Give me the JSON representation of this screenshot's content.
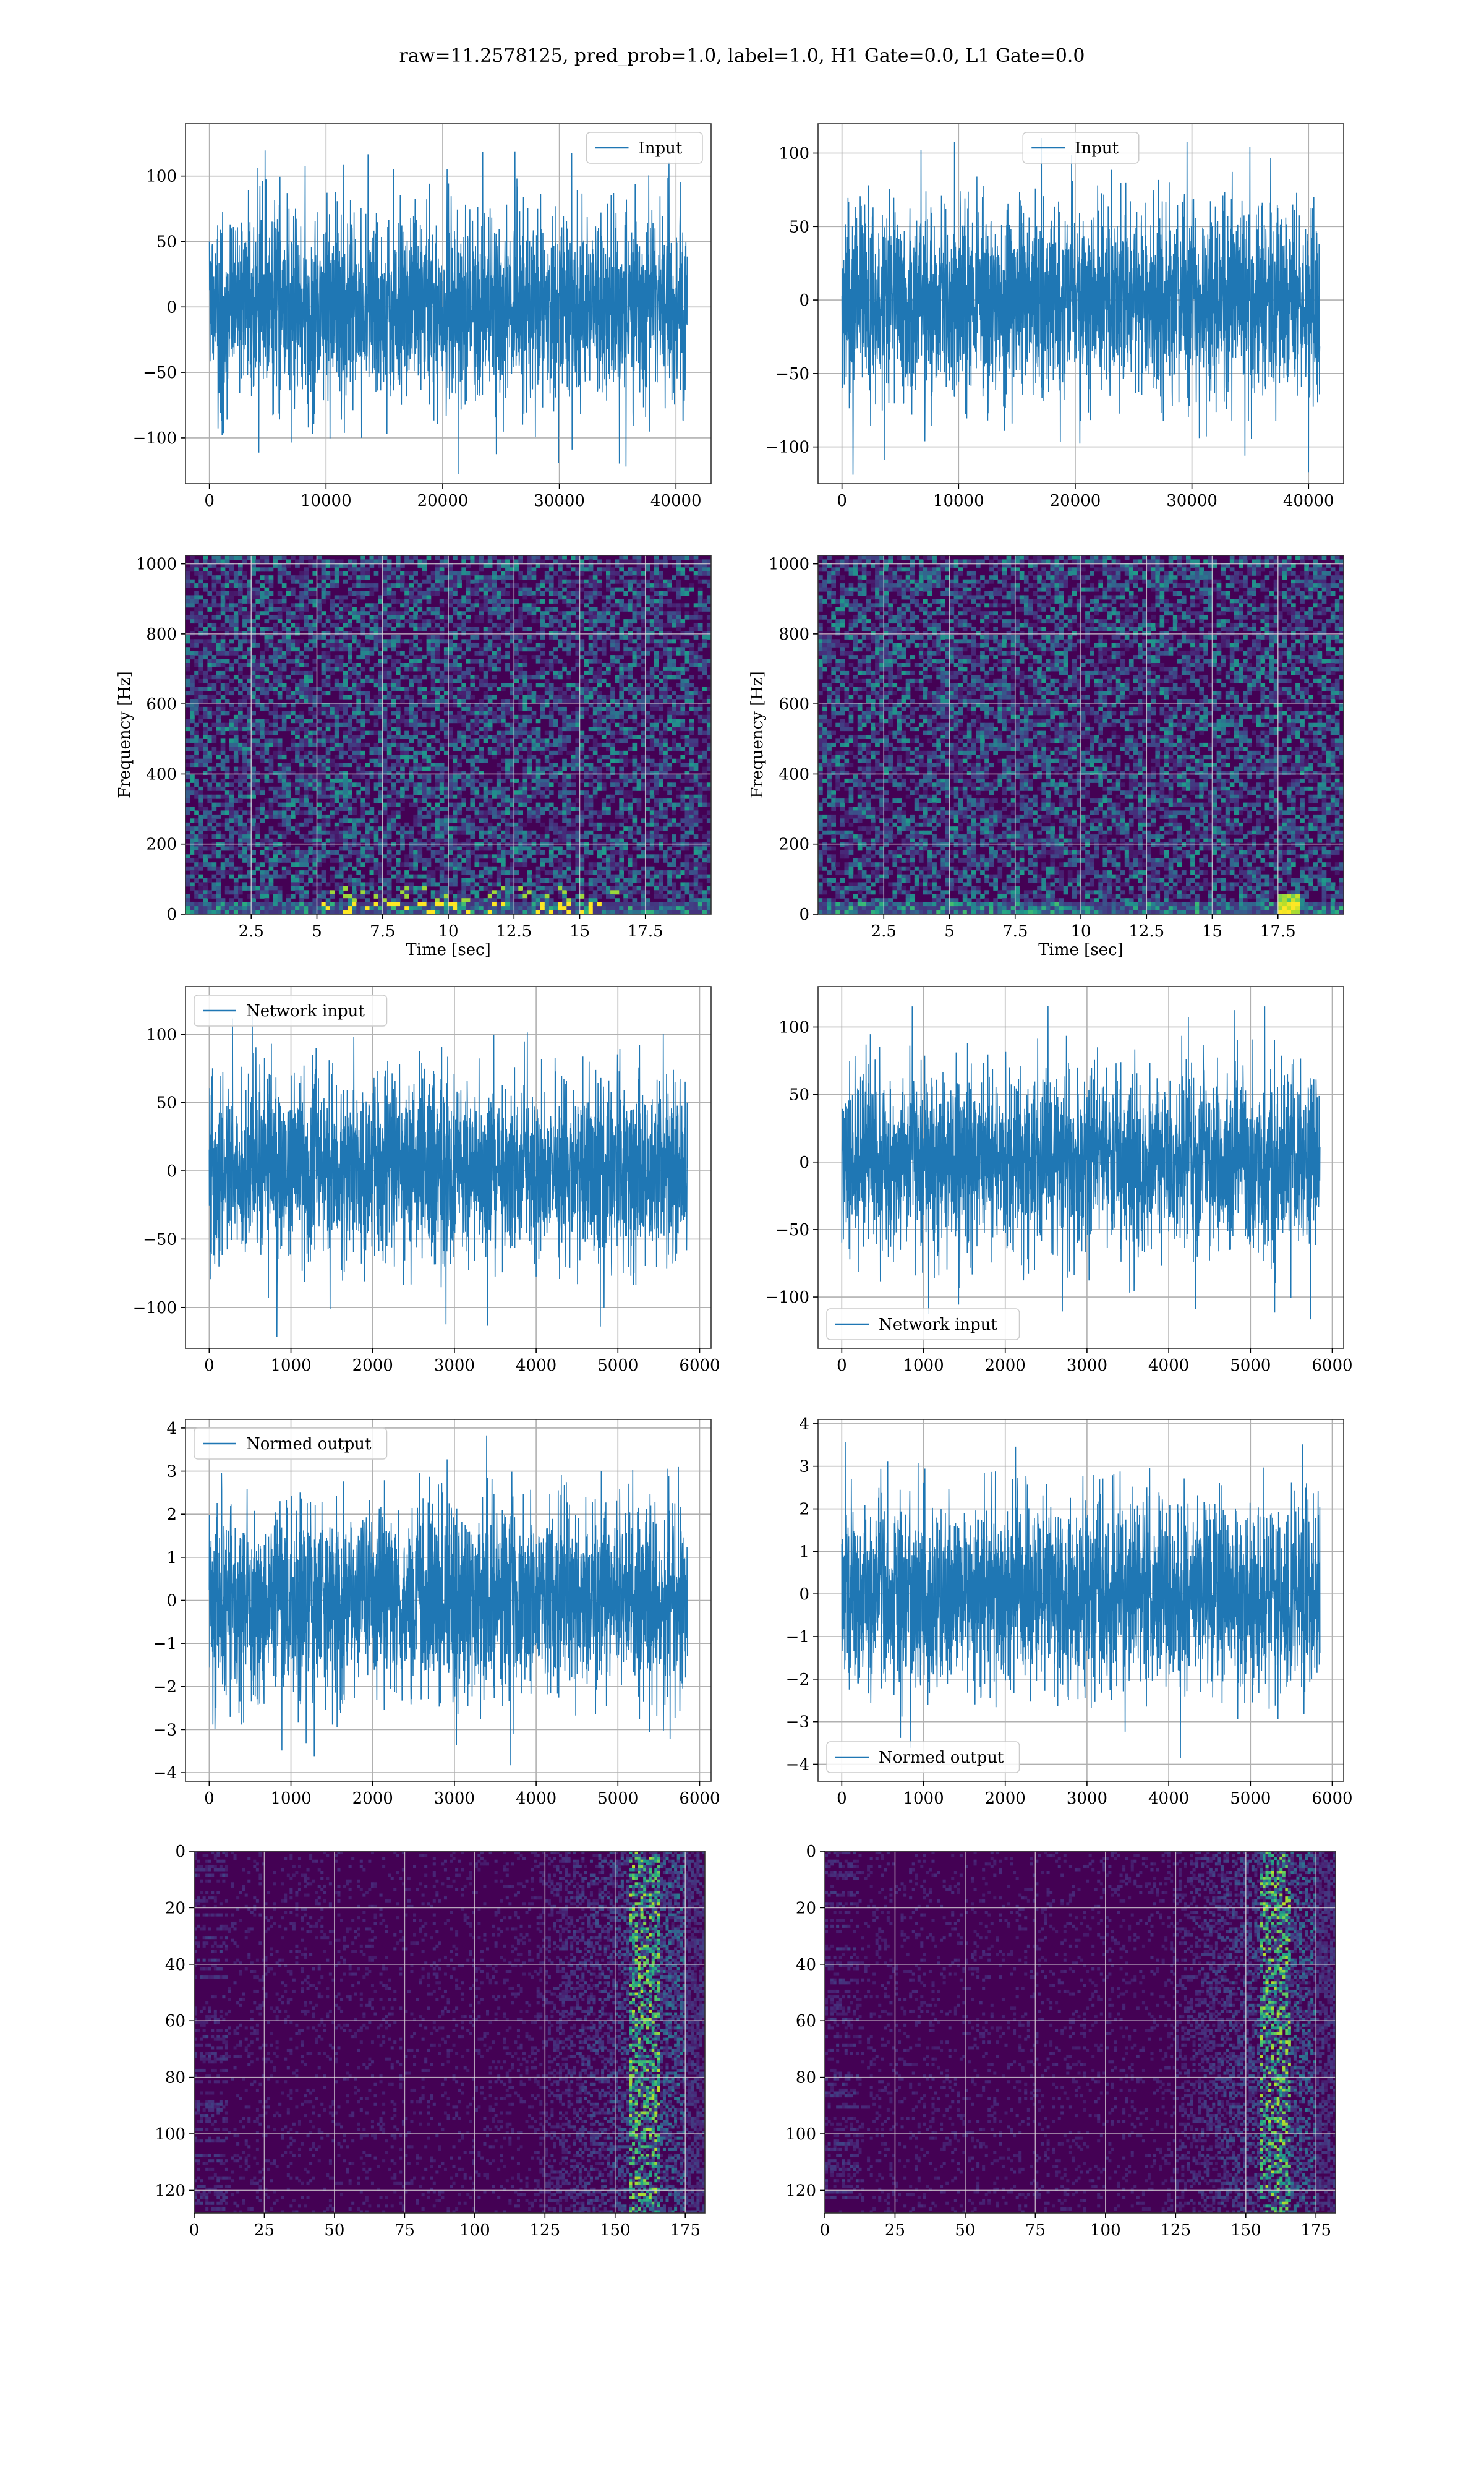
{
  "figure": {
    "title": "raw=11.2578125, pred_prob=1.0, label=1.0, H1 Gate=0.0, L1 Gate=0.0"
  },
  "colors": {
    "line": "#1f77b4",
    "grid": "#b0b0b0",
    "viridis_low": "#440154",
    "viridis_mid": "#21918c",
    "viridis_high": "#fde725"
  },
  "chart_data": [
    {
      "id": "input-h1",
      "type": "line",
      "legend": "Input",
      "legend_loc": "upper right",
      "xlim": [
        -2048,
        43008
      ],
      "ylim": [
        -135,
        140
      ],
      "xticks": [
        0,
        10000,
        20000,
        30000,
        40000
      ],
      "yticks": [
        -100,
        -50,
        0,
        50,
        100
      ],
      "n": 40960,
      "sigma": 30,
      "peak": 130,
      "grid": true
    },
    {
      "id": "input-l1",
      "type": "line",
      "legend": "Input",
      "legend_loc": "upper center",
      "xlim": [
        -2048,
        43008
      ],
      "ylim": [
        -125,
        120
      ],
      "xticks": [
        0,
        10000,
        20000,
        30000,
        40000
      ],
      "yticks": [
        -100,
        -50,
        0,
        50,
        100
      ],
      "n": 40960,
      "sigma": 28,
      "peak": 122,
      "grid": true
    },
    {
      "id": "spec-h1",
      "type": "heatmap",
      "ylabel": "Frequency [Hz]",
      "xlabel": "Time [sec]",
      "xlim": [
        0,
        20
      ],
      "ylim": [
        0,
        1024
      ],
      "xticks": [
        2.5,
        5.0,
        7.5,
        10.0,
        12.5,
        15.0,
        17.5
      ],
      "yticks": [
        0,
        200,
        400,
        600,
        800,
        1000
      ],
      "grid": true
    },
    {
      "id": "spec-l1",
      "type": "heatmap",
      "ylabel": "Frequency [Hz]",
      "xlabel": "Time [sec]",
      "xlim": [
        0,
        20
      ],
      "ylim": [
        0,
        1024
      ],
      "xticks": [
        2.5,
        5.0,
        7.5,
        10.0,
        12.5,
        15.0,
        17.5
      ],
      "yticks": [
        0,
        200,
        400,
        600,
        800,
        1000
      ],
      "grid": true
    },
    {
      "id": "net-h1",
      "type": "line",
      "legend": "Network input",
      "legend_loc": "upper left",
      "xlim": [
        -290,
        6140
      ],
      "ylim": [
        -130,
        135
      ],
      "xticks": [
        0,
        1000,
        2000,
        3000,
        4000,
        5000,
        6000
      ],
      "yticks": [
        -100,
        -50,
        0,
        50,
        100
      ],
      "n": 5850,
      "sigma": 28,
      "peak": 122,
      "grid": true
    },
    {
      "id": "net-l1",
      "type": "line",
      "legend": "Network input",
      "legend_loc": "lower left",
      "xlim": [
        -290,
        6140
      ],
      "ylim": [
        -138,
        130
      ],
      "xticks": [
        0,
        1000,
        2000,
        3000,
        4000,
        5000,
        6000
      ],
      "yticks": [
        -100,
        -50,
        0,
        50,
        100
      ],
      "n": 5850,
      "sigma": 28,
      "peak": 120,
      "grid": true
    },
    {
      "id": "norm-h1",
      "type": "line",
      "legend": "Normed output",
      "legend_loc": "upper left",
      "xlim": [
        -290,
        6140
      ],
      "ylim": [
        -4.2,
        4.2
      ],
      "xticks": [
        0,
        1000,
        2000,
        3000,
        4000,
        5000,
        6000
      ],
      "yticks": [
        -4,
        -3,
        -2,
        -1,
        0,
        1,
        2,
        3,
        4
      ],
      "n": 5850,
      "sigma": 0.95,
      "peak": 3.9,
      "grid": true
    },
    {
      "id": "norm-l1",
      "type": "line",
      "legend": "Normed output",
      "legend_loc": "lower left",
      "xlim": [
        -290,
        6140
      ],
      "ylim": [
        -4.4,
        4.1
      ],
      "xticks": [
        0,
        1000,
        2000,
        3000,
        4000,
        5000,
        6000
      ],
      "yticks": [
        -4,
        -3,
        -2,
        -1,
        0,
        1,
        2,
        3,
        4
      ],
      "n": 5850,
      "sigma": 0.95,
      "peak": 3.9,
      "grid": true
    },
    {
      "id": "feat-h1",
      "type": "heatmap",
      "xlim": [
        0,
        182
      ],
      "ylim": [
        128,
        0
      ],
      "xticks": [
        0,
        25,
        50,
        75,
        100,
        125,
        150,
        175
      ],
      "yticks": [
        0,
        20,
        40,
        60,
        80,
        100,
        120
      ],
      "grid": true
    },
    {
      "id": "feat-l1",
      "type": "heatmap",
      "xlim": [
        0,
        182
      ],
      "ylim": [
        128,
        0
      ],
      "xticks": [
        0,
        25,
        50,
        75,
        100,
        125,
        150,
        175
      ],
      "yticks": [
        0,
        20,
        40,
        60,
        80,
        100,
        120
      ],
      "grid": true
    }
  ]
}
